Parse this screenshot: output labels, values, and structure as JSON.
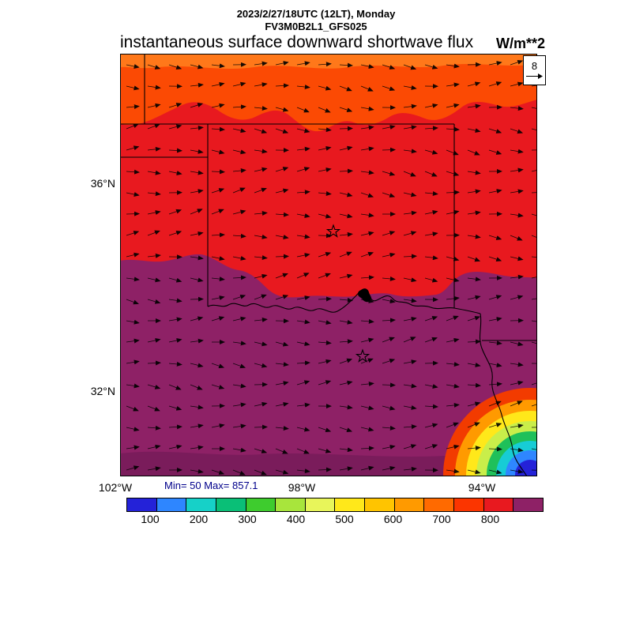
{
  "header": {
    "datetime_line": "2023/2/27/18UTC (12LT), Monday",
    "model_line": "FV3M0B2L1_GFS025",
    "title": "instantaneous surface downward shortwave flux",
    "units": "W/m**2"
  },
  "map": {
    "lat_labels": [
      {
        "text": "36°N"
      },
      {
        "text": "32°N"
      }
    ],
    "lon_labels": [
      {
        "text": "102°W"
      },
      {
        "text": "98°W"
      },
      {
        "text": "94°W"
      }
    ],
    "ref_vector": {
      "label": "8"
    }
  },
  "stats": {
    "text": "Min= 50 Max= 857.1",
    "color": "#00008b"
  },
  "colorbar": {
    "colors": [
      "#2422d8",
      "#2e86ff",
      "#16d1c8",
      "#0abf77",
      "#3ecc2e",
      "#a8e53c",
      "#e8f55a",
      "#ffe81a",
      "#ffc400",
      "#ff9a00",
      "#ff6a00",
      "#fb3500",
      "#e8191f",
      "#8e2166"
    ],
    "labels": [
      "100",
      "200",
      "300",
      "400",
      "500",
      "600",
      "700",
      "800"
    ]
  },
  "colors": {
    "field_red": "#e8191f",
    "field_orange": "#fb4a04",
    "field_orange_light": "#ff7d1d",
    "field_purple": "#8e2166",
    "field_purple_dark": "#7a1c5b",
    "corner_bands": [
      "#f23b00",
      "#ff9a00",
      "#ffe81a",
      "#c9ee4a",
      "#1fc05a",
      "#17ccd5",
      "#2e86ff",
      "#2422d8"
    ],
    "arrow": "#000000"
  },
  "chart_data": {
    "type": "heatmap",
    "title": "instantaneous surface downward shortwave flux",
    "units": "W/m**2",
    "valid_time": "2023/2/27/18UTC (12LT), Monday",
    "model_run": "FV3M0B2L1_GFS025",
    "min_value": 50,
    "max_value": 857.1,
    "colorbar": {
      "tick_values": [
        100,
        200,
        300,
        400,
        500,
        600,
        700,
        800
      ],
      "colors": [
        "#2422d8",
        "#2e86ff",
        "#16d1c8",
        "#0abf77",
        "#3ecc2e",
        "#a8e53c",
        "#e8f55a",
        "#ffe81a",
        "#ffc400",
        "#ff9a00",
        "#ff6a00",
        "#fb3500",
        "#e8191f",
        "#8e2166"
      ]
    },
    "axes": {
      "lat_ticks": [
        "36°N",
        "32°N"
      ],
      "lon_ticks": [
        "102°W",
        "98°W",
        "94°W"
      ],
      "region": "Texas / Oklahoma domain, approx 102W-93W, 30N-38.5N"
    },
    "wind": {
      "reference_value": 8,
      "description": "quiver arrows across whole domain, broadly westerly flow (arrows point east with slight meanders)"
    },
    "field_regions": [
      {
        "region": "northern strip along Kansas border",
        "shade": "orange",
        "approx_flux": "600-750"
      },
      {
        "region": "central band: Oklahoma, Texas panhandle, Red River valley",
        "shade": "red",
        "approx_flux": "750-820"
      },
      {
        "region": "southern half: central and east Texas",
        "shade": "purple",
        "approx_flux": "820-857"
      },
      {
        "region": "southeast corner near Gulf coast",
        "shade": "rainbow rings down to blue core",
        "approx_flux": "100-600 decreasing toward corner"
      }
    ],
    "geography": "State borders (Kansas-Oklahoma 37N line, Oklahoma panhandle, 100W Texas panhandle edge, Oklahoma east border, Red River, east Texas border), two star site markers, dense river meander blob on Red River"
  }
}
